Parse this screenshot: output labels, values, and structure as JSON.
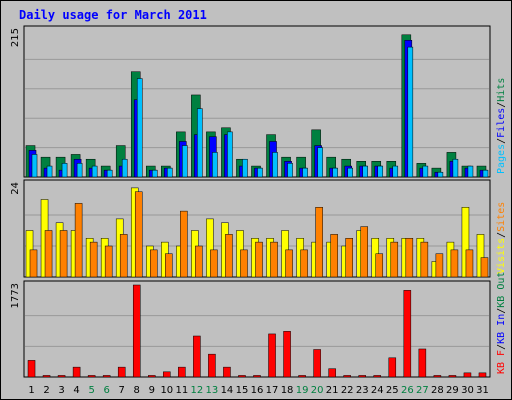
{
  "chart_data": {
    "type": "bar",
    "title": "Daily usage for March 2011",
    "days": [
      "1",
      "2",
      "3",
      "4",
      "5",
      "6",
      "7",
      "8",
      "9",
      "10",
      "11",
      "12",
      "13",
      "14",
      "15",
      "16",
      "17",
      "18",
      "19",
      "20",
      "21",
      "22",
      "23",
      "24",
      "25",
      "26",
      "27",
      "28",
      "29",
      "30",
      "31"
    ],
    "weekend_days": [
      "5",
      "6",
      "12",
      "13",
      "19",
      "20",
      "26",
      "27"
    ],
    "panels": [
      {
        "name": "hits-files-pages",
        "max_label": "215",
        "max": 215,
        "legend": [
          "Pages",
          "/",
          "Files",
          "/",
          "Hits"
        ],
        "legend_colors": [
          "#00c0ff",
          "#000000",
          "#0000ff",
          "#000000",
          "#008040"
        ],
        "series": [
          {
            "name": "Hits",
            "color": "#008040",
            "values": [
              46,
              29,
              29,
              33,
              26,
              16,
              46,
              154,
              16,
              16,
              66,
              120,
              66,
              72,
              26,
              16,
              62,
              29,
              29,
              69,
              29,
              26,
              23,
              23,
              23,
              208,
              20,
              13,
              36,
              16,
              16
            ]
          },
          {
            "name": "Files",
            "color": "#0000ff",
            "values": [
              39,
              13,
              10,
              26,
              13,
              10,
              16,
              113,
              10,
              13,
              52,
              62,
              59,
              62,
              16,
              13,
              52,
              23,
              13,
              46,
              13,
              16,
              16,
              16,
              13,
              200,
              13,
              7,
              23,
              13,
              10
            ]
          },
          {
            "name": "Pages",
            "color": "#00c0ff",
            "values": [
              33,
              16,
              20,
              20,
              16,
              10,
              26,
              144,
              10,
              13,
              46,
              100,
              36,
              66,
              26,
              13,
              36,
              20,
              13,
              43,
              13,
              13,
              16,
              16,
              16,
              190,
              16,
              7,
              26,
              16,
              10
            ]
          }
        ]
      },
      {
        "name": "visits-sites",
        "max_label": "24",
        "max": 24,
        "legend": [
          "Visits",
          "/",
          "Sites"
        ],
        "legend_colors": [
          "#ffff00",
          "#000000",
          "#ff8000"
        ],
        "series": [
          {
            "name": "Visits",
            "color": "#ffff00",
            "values": [
              12,
              20,
              14,
              12,
              10,
              10,
              15,
              23,
              8,
              9,
              8,
              12,
              15,
              14,
              12,
              10,
              10,
              12,
              10,
              9,
              9,
              8,
              12,
              10,
              10,
              10,
              10,
              4,
              9,
              18,
              11
            ]
          },
          {
            "name": "Sites",
            "color": "#ff8000",
            "values": [
              7,
              12,
              12,
              19,
              9,
              8,
              11,
              22,
              7,
              6,
              17,
              8,
              7,
              11,
              7,
              9,
              9,
              7,
              7,
              18,
              11,
              10,
              13,
              6,
              9,
              10,
              9,
              6,
              7,
              7,
              5
            ]
          }
        ]
      },
      {
        "name": "kbytes",
        "max_label": "1773",
        "max": 1773,
        "legend": [
          "KB F",
          "/",
          "KB In",
          "/",
          "KB Out"
        ],
        "legend_colors": [
          "#ff0000",
          "#000000",
          "#0000ff",
          "#000000",
          "#008040"
        ],
        "series": [
          {
            "name": "KB F",
            "color": "#ff0000",
            "values": [
              320,
              30,
              30,
              190,
              30,
              30,
              190,
              1773,
              30,
              100,
              190,
              790,
              440,
              190,
              30,
              30,
              830,
              880,
              30,
              530,
              160,
              30,
              30,
              30,
              370,
              1670,
              540,
              30,
              30,
              80,
              80
            ]
          }
        ]
      }
    ],
    "colors": {
      "background": "#c0c0c0",
      "frame_border": "#000000",
      "title_color": "#0000ff",
      "gridline": "#999999"
    }
  }
}
